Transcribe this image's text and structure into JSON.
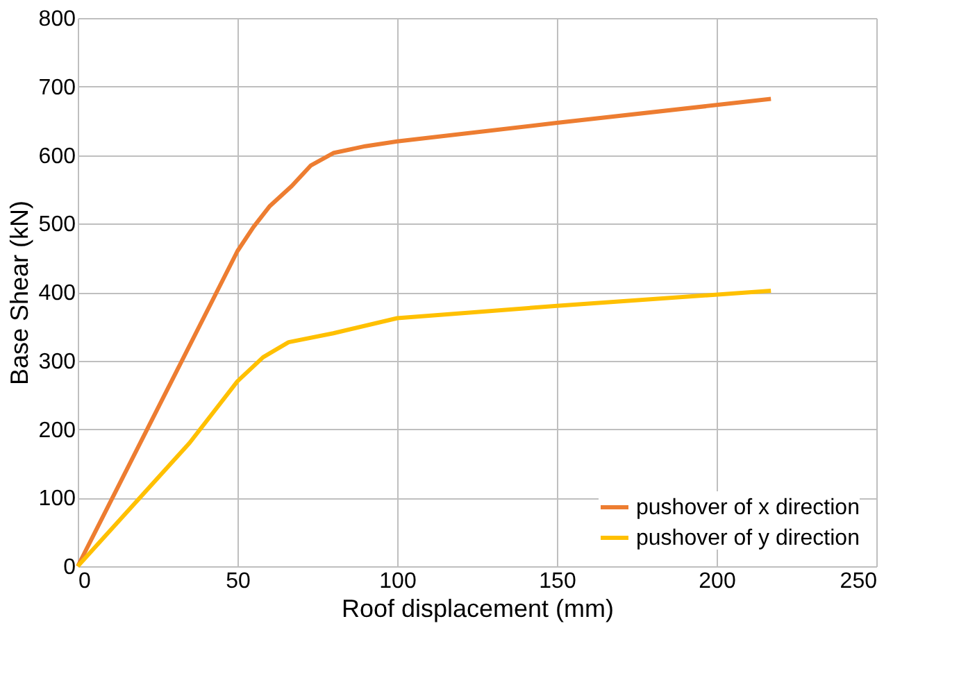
{
  "chart_data": {
    "type": "line",
    "xlabel": "Roof displacement (mm)",
    "ylabel": "Base Shear (kN)",
    "series": [
      {
        "name": "pushover of x direction",
        "color": "#ed7d31",
        "x": [
          0,
          25,
          50,
          55,
          60,
          67,
          73,
          80,
          90,
          100,
          150,
          217
        ],
        "values": [
          0,
          230,
          460,
          495,
          525,
          555,
          585,
          603,
          613,
          620,
          647,
          682
        ]
      },
      {
        "name": "pushover of y direction",
        "color": "#ffc000",
        "x": [
          0,
          35,
          50,
          58,
          66,
          80,
          100,
          150,
          217
        ],
        "values": [
          0,
          180,
          270,
          305,
          327,
          340,
          362,
          380,
          402
        ]
      }
    ],
    "xlim": [
      0,
      250
    ],
    "xticks": [
      0,
      50,
      100,
      150,
      200,
      250
    ],
    "ylim": [
      0,
      800
    ],
    "yticks": [
      0,
      100,
      200,
      300,
      400,
      500,
      600,
      700,
      800
    ],
    "grid": true,
    "legend": "bottom right",
    "marker": "none",
    "line_style": "solid"
  }
}
